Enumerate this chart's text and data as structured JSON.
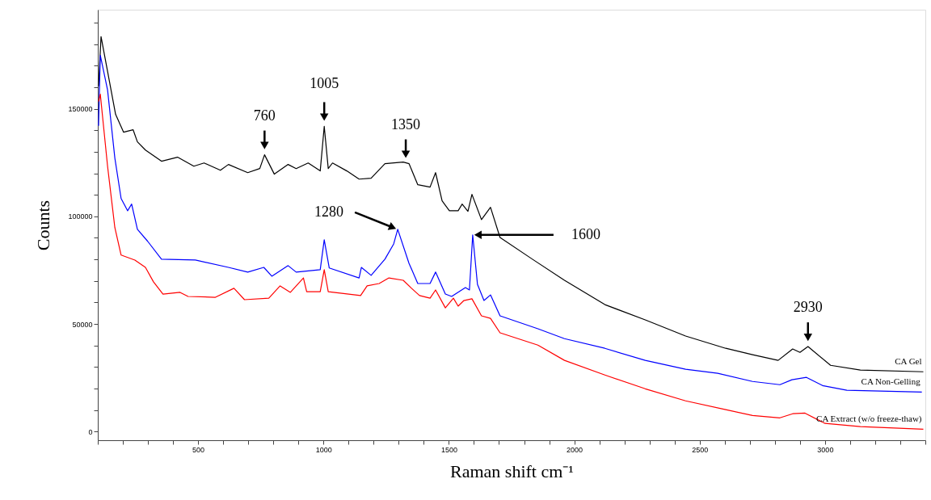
{
  "chart_data": {
    "type": "line",
    "xlabel": "Raman shift cm⁻¹",
    "ylabel": "Counts",
    "xlim": [
      100,
      3400
    ],
    "ylim": [
      -4000,
      196000
    ],
    "xticks": [
      {
        "value": 100,
        "label": null
      },
      {
        "value": 200,
        "label": null
      },
      {
        "value": 300,
        "label": null
      },
      {
        "value": 400,
        "label": null
      },
      500,
      {
        "value": 600,
        "label": null
      },
      {
        "value": 700,
        "label": null
      },
      {
        "value": 800,
        "label": null
      },
      {
        "value": 900,
        "label": null
      },
      1000,
      {
        "value": 1100,
        "label": null
      },
      {
        "value": 1200,
        "label": null
      },
      {
        "value": 1300,
        "label": null
      },
      {
        "value": 1400,
        "label": null
      },
      1500,
      {
        "value": 1600,
        "label": null
      },
      {
        "value": 1700,
        "label": null
      },
      {
        "value": 1800,
        "label": null
      },
      {
        "value": 1900,
        "label": null
      },
      2000,
      {
        "value": 2100,
        "label": null
      },
      {
        "value": 2200,
        "label": null
      },
      {
        "value": 2300,
        "label": null
      },
      {
        "value": 2400,
        "label": null
      },
      2500,
      {
        "value": 2600,
        "label": null
      },
      {
        "value": 2700,
        "label": null
      },
      {
        "value": 2800,
        "label": null
      },
      {
        "value": 2900,
        "label": null
      },
      3000,
      {
        "value": 3100,
        "label": null
      },
      {
        "value": 3200,
        "label": null
      },
      {
        "value": 3300,
        "label": null
      },
      {
        "value": 3400,
        "label": null
      }
    ],
    "yticks": [
      0,
      {
        "value": 10000,
        "label": null
      },
      {
        "value": 20000,
        "label": null
      },
      {
        "value": 30000,
        "label": null
      },
      {
        "value": 40000,
        "label": null
      },
      50000,
      {
        "value": 60000,
        "label": null
      },
      {
        "value": 70000,
        "label": null
      },
      {
        "value": 80000,
        "label": null
      },
      {
        "value": 90000,
        "label": null
      },
      100000,
      {
        "value": 110000,
        "label": null
      },
      {
        "value": 120000,
        "label": null
      },
      {
        "value": 130000,
        "label": null
      },
      {
        "value": 140000,
        "label": null
      },
      150000,
      {
        "value": 160000,
        "label": null
      },
      {
        "value": 170000,
        "label": null
      },
      {
        "value": 180000,
        "label": null
      },
      {
        "value": 190000,
        "label": null
      }
    ],
    "legend": false,
    "series": [
      {
        "name": "CA Gel",
        "color": "#000000",
        "x": [
          103,
          113,
          139,
          171,
          203,
          241,
          258,
          290,
          354,
          418,
          483,
          524,
          589,
          621,
          698,
          746,
          765,
          804,
          859,
          891,
          939,
          987,
          1003,
          1019,
          1036,
          1093,
          1142,
          1190,
          1245,
          1318,
          1341,
          1376,
          1425,
          1447,
          1473,
          1502,
          1537,
          1553,
          1576,
          1592,
          1630,
          1666,
          1704,
          1833,
          1961,
          2122,
          2283,
          2444,
          2604,
          2711,
          2813,
          2871,
          2900,
          2932,
          3022,
          3141,
          3392
        ],
        "values": [
          160500,
          183500,
          167300,
          147400,
          139100,
          140200,
          134600,
          130800,
          125600,
          127500,
          123300,
          124800,
          121400,
          124100,
          120300,
          122200,
          128600,
          119600,
          124100,
          122200,
          124800,
          121100,
          141800,
          122200,
          124800,
          121100,
          117300,
          117700,
          124500,
          125200,
          124500,
          114700,
          113600,
          120300,
          107200,
          102600,
          102600,
          105700,
          102300,
          110200,
          98500,
          104200,
          90200,
          80100,
          70300,
          59000,
          51900,
          44400,
          38700,
          35700,
          33100,
          38400,
          36800,
          39500,
          30800,
          28600,
          27800
        ]
      },
      {
        "name": "CA Non-Gelling",
        "color": "#0000ff",
        "x": [
          103,
          110,
          139,
          168,
          193,
          219,
          235,
          258,
          299,
          354,
          489,
          621,
          698,
          762,
          794,
          859,
          891,
          987,
          1003,
          1023,
          1142,
          1151,
          1190,
          1245,
          1280,
          1296,
          1341,
          1376,
          1425,
          1447,
          1486,
          1511,
          1566,
          1582,
          1595,
          1614,
          1640,
          1666,
          1704,
          1855,
          1961,
          2122,
          2283,
          2444,
          2572,
          2711,
          2820,
          2868,
          2926,
          2990,
          3087,
          3386
        ],
        "values": [
          142100,
          174800,
          158700,
          127100,
          108300,
          102600,
          105700,
          94000,
          88400,
          80100,
          79700,
          76300,
          74100,
          76300,
          72200,
          77100,
          74100,
          75200,
          89100,
          76000,
          71400,
          76300,
          72600,
          80100,
          87200,
          94000,
          78200,
          68800,
          68800,
          74100,
          63900,
          62800,
          66900,
          65800,
          91400,
          68400,
          60900,
          63500,
          53800,
          47800,
          43200,
          38700,
          33100,
          29000,
          27100,
          23300,
          21800,
          24100,
          25200,
          21400,
          19200,
          18400
        ]
      },
      {
        "name": "CA Extract (w/o freeze-thaw)",
        "color": "#ff0000",
        "x": [
          103,
          110,
          139,
          168,
          193,
          248,
          290,
          322,
          360,
          428,
          460,
          569,
          643,
          685,
          782,
          827,
          868,
          920,
          933,
          987,
          1003,
          1019,
          1148,
          1174,
          1222,
          1261,
          1318,
          1351,
          1383,
          1425,
          1447,
          1486,
          1518,
          1537,
          1560,
          1592,
          1630,
          1666,
          1704,
          1855,
          1961,
          2122,
          2283,
          2444,
          2604,
          2711,
          2820,
          2871,
          2920,
          3000,
          3141,
          3392
        ],
        "values": [
          153400,
          156800,
          123300,
          94800,
          82000,
          79700,
          76300,
          69600,
          63900,
          64700,
          62800,
          62400,
          66600,
          61300,
          62000,
          67700,
          64700,
          71400,
          65000,
          65000,
          75200,
          65000,
          63200,
          67700,
          68800,
          71400,
          70300,
          66600,
          63200,
          62000,
          65800,
          57500,
          62000,
          58300,
          60900,
          61700,
          53800,
          52600,
          45900,
          40200,
          33100,
          26300,
          19900,
          14300,
          10200,
          7500,
          6400,
          8300,
          8600,
          3800,
          2300,
          1100
        ]
      }
    ],
    "annotations": [
      {
        "text": "760",
        "x": 765,
        "y": 128600
      },
      {
        "text": "1005",
        "x": 1003,
        "y": 141800
      },
      {
        "text": "1350",
        "x": 1341,
        "y": 124500
      },
      {
        "text": "1280",
        "x": 1296,
        "y": 94000
      },
      {
        "text": "1600",
        "x": 1595,
        "y": 91400
      },
      {
        "text": "2930",
        "x": 2932,
        "y": 39500
      }
    ]
  }
}
